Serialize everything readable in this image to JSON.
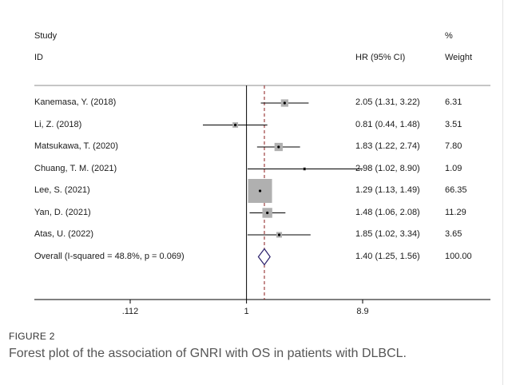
{
  "figure": {
    "label": "FIGURE 2",
    "caption": "Forest plot of the association of GNRI with OS in patients with DLBCL."
  },
  "chart_data": {
    "type": "forest",
    "headers": {
      "study_line1": "Study",
      "study_line2": "ID",
      "effect": "HR (95% CI)",
      "weight_line1": "%",
      "weight_line2": "Weight"
    },
    "x_scale": "log",
    "x_ticks": [
      {
        "value": 0.112,
        "label": ".112"
      },
      {
        "value": 1,
        "label": "1"
      },
      {
        "value": 8.9,
        "label": "8.9"
      }
    ],
    "xlim": [
      0.112,
      8.9
    ],
    "null_value": 1,
    "pooled_value": 1.4,
    "studies": [
      {
        "label": "Kanemasa, Y. (2018)",
        "hr": 2.05,
        "lo": 1.31,
        "hi": 3.22,
        "ci_text": "2.05 (1.31, 3.22)",
        "weight": 6.31,
        "weight_text": "6.31"
      },
      {
        "label": "Li, Z. (2018)",
        "hr": 0.81,
        "lo": 0.44,
        "hi": 1.48,
        "ci_text": "0.81 (0.44, 1.48)",
        "weight": 3.51,
        "weight_text": "3.51"
      },
      {
        "label": "Matsukawa, T. (2020)",
        "hr": 1.83,
        "lo": 1.22,
        "hi": 2.74,
        "ci_text": "1.83 (1.22, 2.74)",
        "weight": 7.8,
        "weight_text": "7.80"
      },
      {
        "label": "Chuang, T. M. (2021)",
        "hr": 2.98,
        "lo": 1.02,
        "hi": 8.9,
        "ci_text": "2.98 (1.02, 8.90)",
        "weight": 1.09,
        "weight_text": "1.09"
      },
      {
        "label": "Lee, S. (2021)",
        "hr": 1.29,
        "lo": 1.13,
        "hi": 1.49,
        "ci_text": "1.29 (1.13, 1.49)",
        "weight": 66.35,
        "weight_text": "66.35"
      },
      {
        "label": "Yan, D. (2021)",
        "hr": 1.48,
        "lo": 1.06,
        "hi": 2.08,
        "ci_text": "1.48 (1.06, 2.08)",
        "weight": 11.29,
        "weight_text": "11.29"
      },
      {
        "label": "Atas, U. (2022)",
        "hr": 1.85,
        "lo": 1.02,
        "hi": 3.34,
        "ci_text": "1.85 (1.02, 3.34)",
        "weight": 3.65,
        "weight_text": "3.65"
      }
    ],
    "overall": {
      "label": "Overall  (I-squared = 48.8%, p = 0.069)",
      "hr": 1.4,
      "lo": 1.25,
      "hi": 1.56,
      "ci_text": "1.40 (1.25, 1.56)",
      "weight_text": "100.00"
    },
    "colors": {
      "square": "#b0b0b0",
      "diamond": "#2a1f6b",
      "pooled_line": "#8b1a1a",
      "axis": "#000000"
    }
  }
}
